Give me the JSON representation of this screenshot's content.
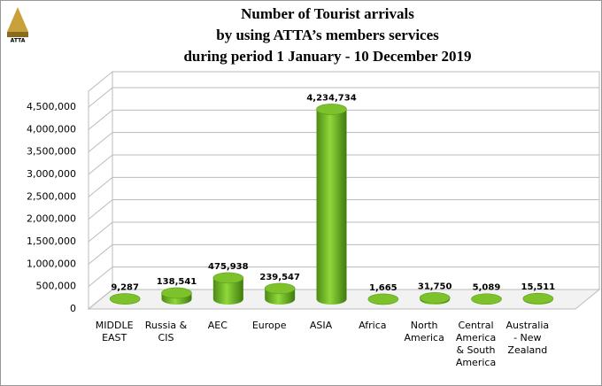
{
  "logo": "ATTA",
  "chart_data": {
    "type": "bar",
    "title": [
      "Number of Tourist arrivals",
      "by using ATTA’s members services",
      "during period 1 January - 10 December 2019"
    ],
    "categories": [
      "MIDDLE EAST",
      "Russia & CIS",
      "AEC",
      "Europe",
      "ASIA",
      "Africa",
      "North America",
      "Central America & South America",
      "Australia - New Zealand"
    ],
    "values": [
      9287,
      138541,
      475938,
      239547,
      4234734,
      1665,
      31750,
      5089,
      15511
    ],
    "value_labels": [
      "9,287",
      "138,541",
      "475,938",
      "239,547",
      "4,234,734",
      "1,665",
      "31,750",
      "5,089",
      "15,511"
    ],
    "color": "#7dc22a",
    "ylim": [
      0,
      4500000
    ],
    "yticks": [
      0,
      {
        "value": 500000,
        "label": "500,000"
      },
      {
        "value": 1000000,
        "label": "1,000,000"
      },
      {
        "value": 1500000,
        "label": "1,500,000"
      },
      {
        "value": 2000000,
        "label": "2,000,000"
      },
      {
        "value": 2500000,
        "label": "2,500,000"
      },
      {
        "value": 3000000,
        "label": "3,000,000"
      },
      {
        "value": 3500000,
        "label": "3,500,000"
      },
      {
        "value": 4000000,
        "label": "4,000,000"
      },
      {
        "value": 4500000,
        "label": "4,500,000"
      }
    ],
    "grid": true
  }
}
